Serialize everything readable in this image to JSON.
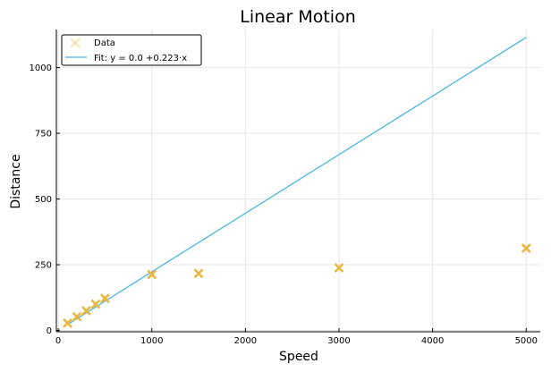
{
  "chart_data": {
    "type": "scatter",
    "title": "Linear Motion",
    "xlabel": "Speed",
    "ylabel": "Distance",
    "xlim": [
      -20,
      5150
    ],
    "ylim": [
      -5,
      1145
    ],
    "x_ticks": [
      0,
      1000,
      2000,
      3000,
      4000,
      5000
    ],
    "x_tick_labels": [
      "0",
      "1000",
      "2000",
      "3000",
      "4000",
      "5000"
    ],
    "y_ticks": [
      0,
      250,
      500,
      750,
      1000
    ],
    "y_tick_labels": [
      "0",
      "250",
      "500",
      "750",
      "1000"
    ],
    "grid": true,
    "legend_position": "top-left",
    "series": [
      {
        "name": "Data",
        "kind": "scatter",
        "marker": "x",
        "color": "#e9b840",
        "x": [
          100,
          200,
          300,
          400,
          500,
          1000,
          1500,
          3000,
          5000
        ],
        "y": [
          28,
          52,
          75,
          100,
          122,
          213,
          217,
          238,
          313
        ]
      },
      {
        "name": "Fit: y = 0.0 +0.223·x",
        "kind": "line",
        "color": "#4db3e0",
        "intercept": 0.0,
        "slope": 0.223,
        "x_range": [
          100,
          5000
        ]
      }
    ]
  }
}
